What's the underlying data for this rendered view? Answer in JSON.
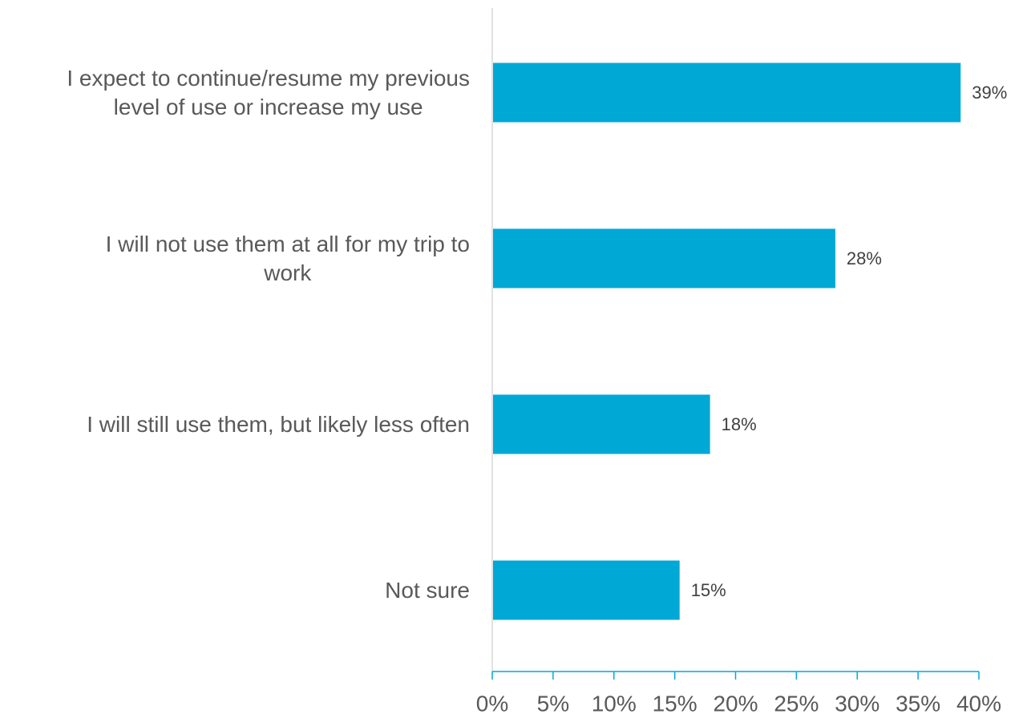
{
  "chart_data": {
    "type": "bar",
    "orientation": "horizontal",
    "categories": [
      [
        "I expect to continue/resume my previous",
        "level of use or increase my use"
      ],
      [
        "I will not use them at all for my trip to",
        "work"
      ],
      [
        "I will still use them, but likely less often"
      ],
      [
        "Not sure"
      ]
    ],
    "values": [
      38.5,
      28.2,
      17.9,
      15.4
    ],
    "data_labels": [
      "39%",
      "28%",
      "18%",
      "15%"
    ],
    "xlim": [
      0,
      40
    ],
    "xticks": [
      0,
      5,
      10,
      15,
      20,
      25,
      30,
      35,
      40
    ],
    "xtick_labels": [
      "0%",
      "5%",
      "10%",
      "15%",
      "20%",
      "25%",
      "30%",
      "35%",
      "40%"
    ],
    "grid": false,
    "colors": {
      "bar": "#00A8D6",
      "axis": "#00A8D6",
      "category_axis": "#D9D9D9",
      "label_text": "#595959",
      "data_label_text": "#404040"
    }
  }
}
